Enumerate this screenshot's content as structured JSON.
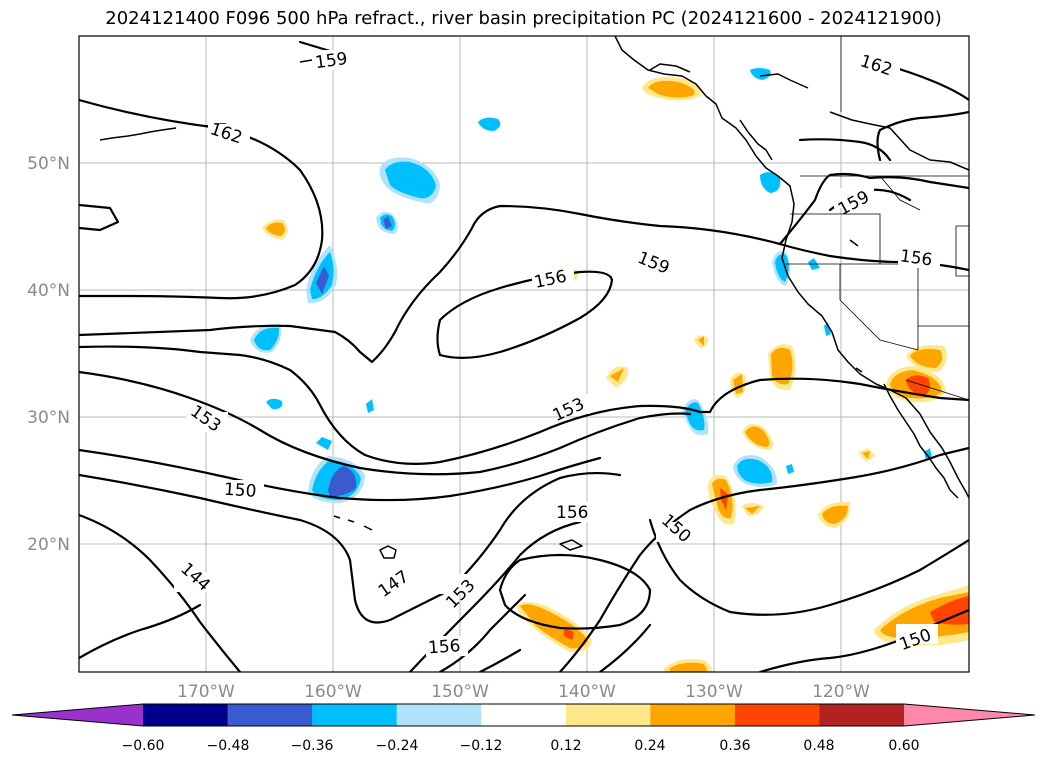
{
  "title": "2024121400 F096 500 hPa refract., river basin precipitation PC (2024121600 - 2024121900)",
  "lat_labels": [
    "50°N",
    "40°N",
    "30°N",
    "20°N"
  ],
  "lon_labels": [
    "170°W",
    "160°W",
    "150°W",
    "140°W",
    "130°W",
    "120°W"
  ],
  "contour_labels": [
    "159",
    "162",
    "162",
    "159",
    "156",
    "159",
    "156",
    "153",
    "153",
    "150",
    "156",
    "150",
    "147",
    "153",
    "156",
    "144",
    "150"
  ],
  "colorbar": {
    "ticks": [
      "−0.60",
      "−0.48",
      "−0.36",
      "−0.24",
      "−0.12",
      "0.12",
      "0.24",
      "0.36",
      "0.48",
      "0.60"
    ],
    "colors": [
      "#9932cc",
      "#00008b",
      "#3a5bd0",
      "#00bfff",
      "#b0e2fa",
      "#ffffff",
      "#ffe88c",
      "#ffa500",
      "#ff4500",
      "#b22222",
      "#ff88aa"
    ]
  }
}
